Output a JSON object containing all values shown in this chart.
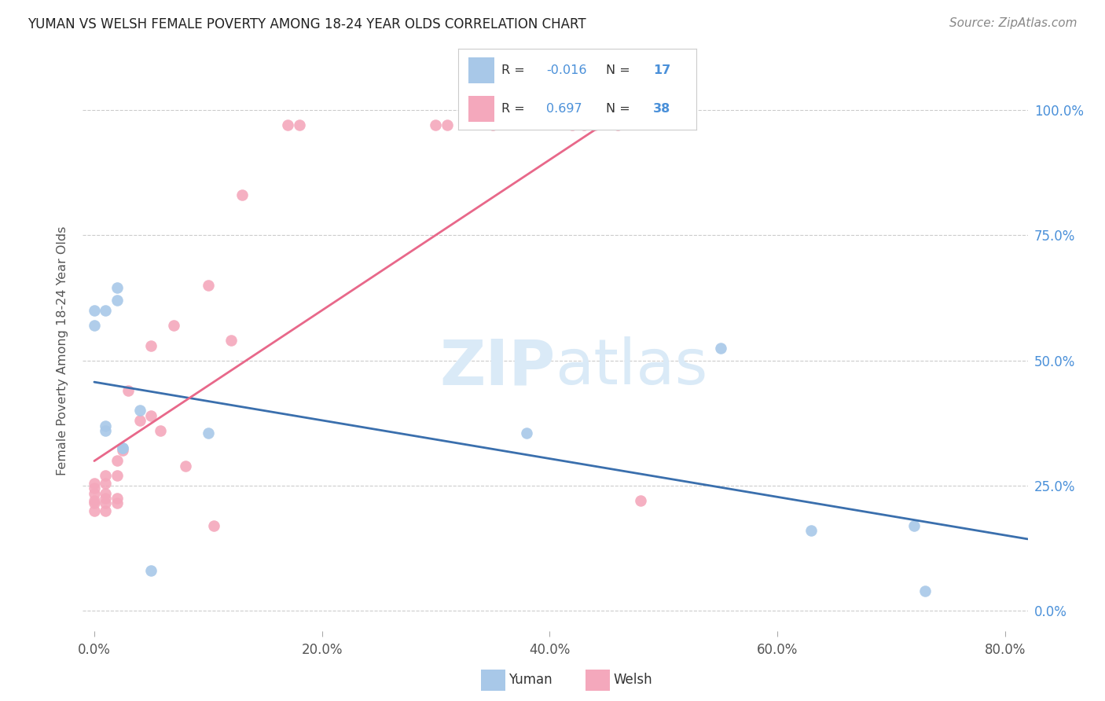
{
  "title": "YUMAN VS WELSH FEMALE POVERTY AMONG 18-24 YEAR OLDS CORRELATION CHART",
  "source": "Source: ZipAtlas.com",
  "ylabel": "Female Poverty Among 18-24 Year Olds",
  "xlim": [
    -0.01,
    0.82
  ],
  "ylim": [
    -0.04,
    1.08
  ],
  "yuman_r": -0.016,
  "yuman_n": 17,
  "welsh_r": 0.697,
  "welsh_n": 38,
  "yuman_color": "#a8c8e8",
  "welsh_color": "#f4a8bc",
  "yuman_line_color": "#3a6fad",
  "welsh_line_color": "#e8688a",
  "watermark_color": "#daeaf7",
  "background_color": "#ffffff",
  "grid_color": "#cccccc",
  "xticks": [
    0.0,
    0.2,
    0.4,
    0.6,
    0.8
  ],
  "xtick_labels": [
    "0.0%",
    "20.0%",
    "40.0%",
    "60.0%",
    "80.0%"
  ],
  "yticks": [
    0.0,
    0.25,
    0.5,
    0.75,
    1.0
  ],
  "ytick_labels": [
    "0.0%",
    "25.0%",
    "50.0%",
    "75.0%",
    "100.0%"
  ],
  "yuman_x": [
    0.0,
    0.0,
    0.01,
    0.01,
    0.02,
    0.02,
    0.025,
    0.025,
    0.04,
    0.05,
    0.1,
    0.38,
    0.55,
    0.63,
    0.72,
    0.73,
    0.01
  ],
  "yuman_y": [
    0.6,
    0.57,
    0.6,
    0.37,
    0.62,
    0.645,
    0.325,
    0.325,
    0.4,
    0.08,
    0.355,
    0.355,
    0.525,
    0.16,
    0.17,
    0.04,
    0.36
  ],
  "welsh_x": [
    0.0,
    0.0,
    0.0,
    0.0,
    0.0,
    0.0,
    0.01,
    0.01,
    0.01,
    0.01,
    0.01,
    0.01,
    0.02,
    0.02,
    0.02,
    0.02,
    0.025,
    0.03,
    0.04,
    0.05,
    0.05,
    0.058,
    0.07,
    0.08,
    0.1,
    0.105,
    0.12,
    0.13,
    0.17,
    0.18,
    0.3,
    0.31,
    0.35,
    0.42,
    0.43,
    0.44,
    0.46,
    0.48
  ],
  "welsh_y": [
    0.2,
    0.215,
    0.22,
    0.235,
    0.245,
    0.255,
    0.2,
    0.215,
    0.225,
    0.235,
    0.255,
    0.27,
    0.215,
    0.225,
    0.27,
    0.3,
    0.32,
    0.44,
    0.38,
    0.39,
    0.53,
    0.36,
    0.57,
    0.29,
    0.65,
    0.17,
    0.54,
    0.83,
    0.97,
    0.97,
    0.97,
    0.97,
    0.97,
    0.97,
    0.97,
    0.97,
    0.97,
    0.22
  ]
}
